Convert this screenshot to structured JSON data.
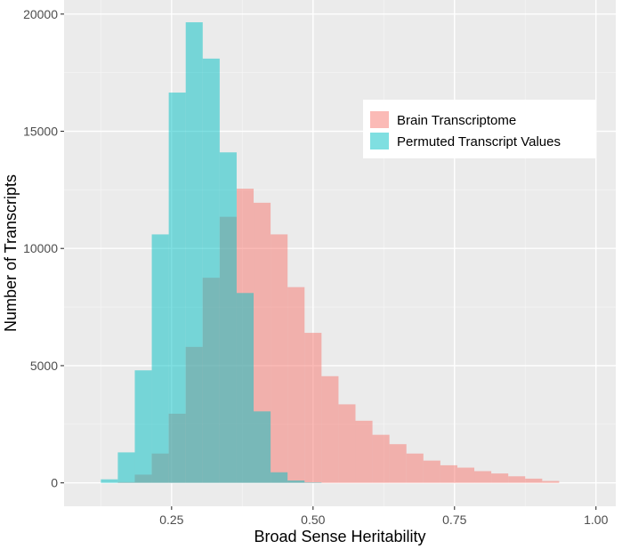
{
  "chart_data": {
    "type": "bar",
    "subtype": "overlapping-histogram",
    "title": "",
    "xlabel": "Broad Sense Heritability",
    "ylabel": "Number of Transcripts",
    "xlim": [
      0.06,
      1.035
    ],
    "ylim": [
      -1000,
      20600
    ],
    "x_ticks": [
      0.25,
      0.5,
      0.75,
      1.0
    ],
    "x_tick_labels": [
      "0.25",
      "0.50",
      "0.75",
      "1.00"
    ],
    "y_ticks": [
      0,
      5000,
      10000,
      15000,
      20000
    ],
    "y_tick_labels": [
      "0",
      "5000",
      "10000",
      "15000",
      "20000"
    ],
    "grid": true,
    "panel_background": "#ebebeb",
    "legend_position": "top-right",
    "bin_width": 0.03,
    "bin_start": 0.125,
    "series": [
      {
        "name": "Brain Transcriptome",
        "color": "#f8766d",
        "values": [
          0,
          30,
          350,
          1250,
          2950,
          5800,
          8750,
          11350,
          12550,
          11950,
          10600,
          8350,
          6400,
          4550,
          3350,
          2650,
          2050,
          1650,
          1250,
          950,
          750,
          650,
          500,
          400,
          280,
          180,
          80,
          0,
          0
        ]
      },
      {
        "name": "Permuted Transcript Values",
        "color": "#00bfc4",
        "values": [
          150,
          1300,
          4800,
          10600,
          16650,
          19650,
          18100,
          14100,
          8100,
          3050,
          450,
          100,
          20,
          0,
          0,
          0,
          0,
          0,
          0,
          0,
          0,
          0,
          0,
          0,
          0,
          0,
          0,
          0,
          0
        ]
      }
    ]
  }
}
